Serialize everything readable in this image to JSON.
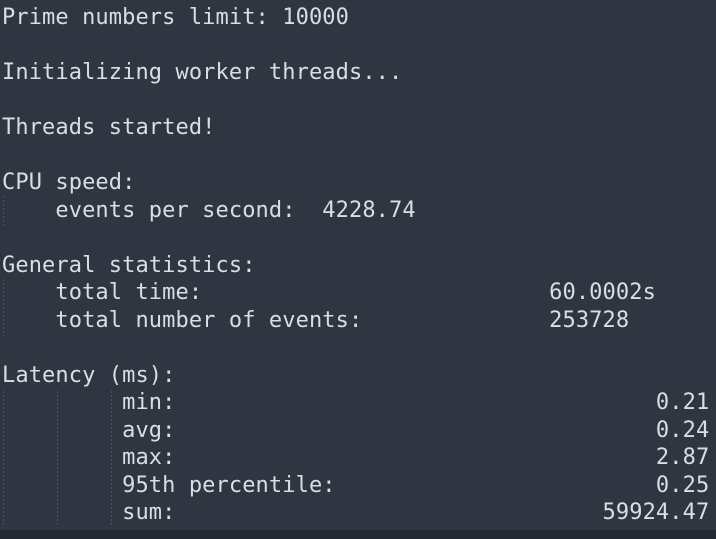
{
  "terminal": {
    "app": "terminal-benchmark-output",
    "lines": [
      "Prime numbers limit: 10000",
      "",
      "Initializing worker threads...",
      "",
      "Threads started!",
      "",
      "CPU speed:",
      "    events per second:  4228.74",
      "",
      "General statistics:",
      "    total time:                          60.0002s",
      "    total number of events:              253728",
      "",
      "Latency (ms):",
      "         min:                                    0.21",
      "         avg:                                    0.24",
      "         max:                                    2.87",
      "         95th percentile:                        0.25",
      "         sum:                                59924.47"
    ],
    "stats": {
      "prime_numbers_limit": "10000",
      "events_per_second": "4228.74",
      "total_time": "60.0002s",
      "total_number_of_events": "253728",
      "latency_ms": {
        "min": "0.21",
        "avg": "0.24",
        "max": "2.87",
        "p95": "0.25",
        "sum": "59924.47"
      }
    },
    "colors": {
      "background": "#2f3641",
      "text": "#d8dde6",
      "indent_guide": "#4a5361",
      "bottom_edge": "#232932"
    }
  }
}
